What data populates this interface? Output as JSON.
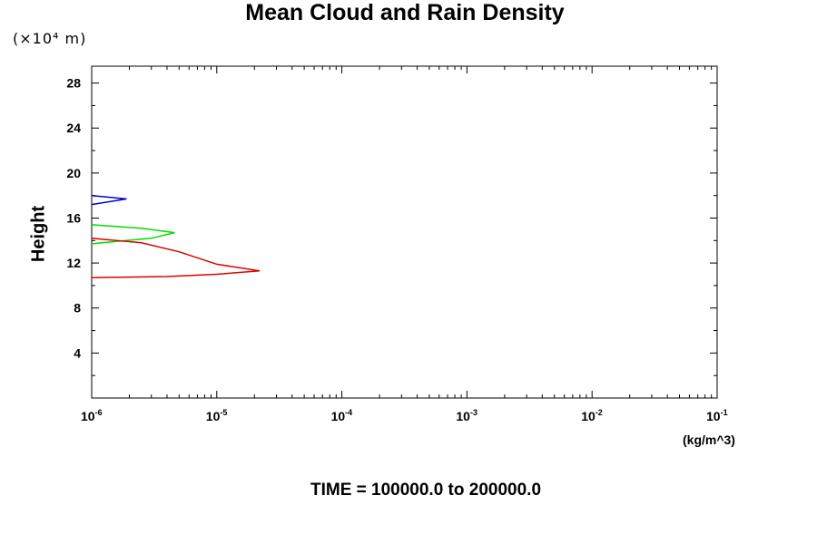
{
  "chart_data": {
    "type": "line",
    "title": "Mean Cloud and Rain Density",
    "ylabel": "Height",
    "y_unit_label": "(×10⁴ m)",
    "xlabel_unit": "(kg/m^3)",
    "footer": "TIME = 100000.0 to 200000.0",
    "x_scale": "log",
    "xlim": [
      1e-06,
      0.1
    ],
    "ylim": [
      0,
      29.5
    ],
    "x_ticks": [
      {
        "base": "10",
        "exp": "-6"
      },
      {
        "base": "10",
        "exp": "-5"
      },
      {
        "base": "10",
        "exp": "-4"
      },
      {
        "base": "10",
        "exp": "-3"
      },
      {
        "base": "10",
        "exp": "-2"
      },
      {
        "base": "10",
        "exp": "-1"
      }
    ],
    "y_ticks": [
      "4",
      "8",
      "12",
      "16",
      "20",
      "24",
      "28"
    ],
    "grid": false,
    "series": [
      {
        "color": "#0000cc",
        "points": [
          [
            1e-06,
            18.0
          ],
          [
            1.9e-06,
            17.7
          ],
          [
            1e-06,
            17.2
          ]
        ]
      },
      {
        "color": "#00dd00",
        "points": [
          [
            1e-06,
            15.4
          ],
          [
            2.5e-06,
            15.1
          ],
          [
            4.6e-06,
            14.7
          ],
          [
            3e-06,
            14.2
          ],
          [
            1.2e-06,
            13.8
          ],
          [
            1e-06,
            13.7
          ]
        ]
      },
      {
        "color": "#dd0000",
        "points": [
          [
            1e-06,
            14.2
          ],
          [
            2.5e-06,
            13.8
          ],
          [
            5e-06,
            13.0
          ],
          [
            1e-05,
            11.9
          ],
          [
            2.2e-05,
            11.3
          ],
          [
            1e-05,
            11.0
          ],
          [
            4e-06,
            10.8
          ],
          [
            1e-06,
            10.7
          ]
        ]
      }
    ]
  }
}
